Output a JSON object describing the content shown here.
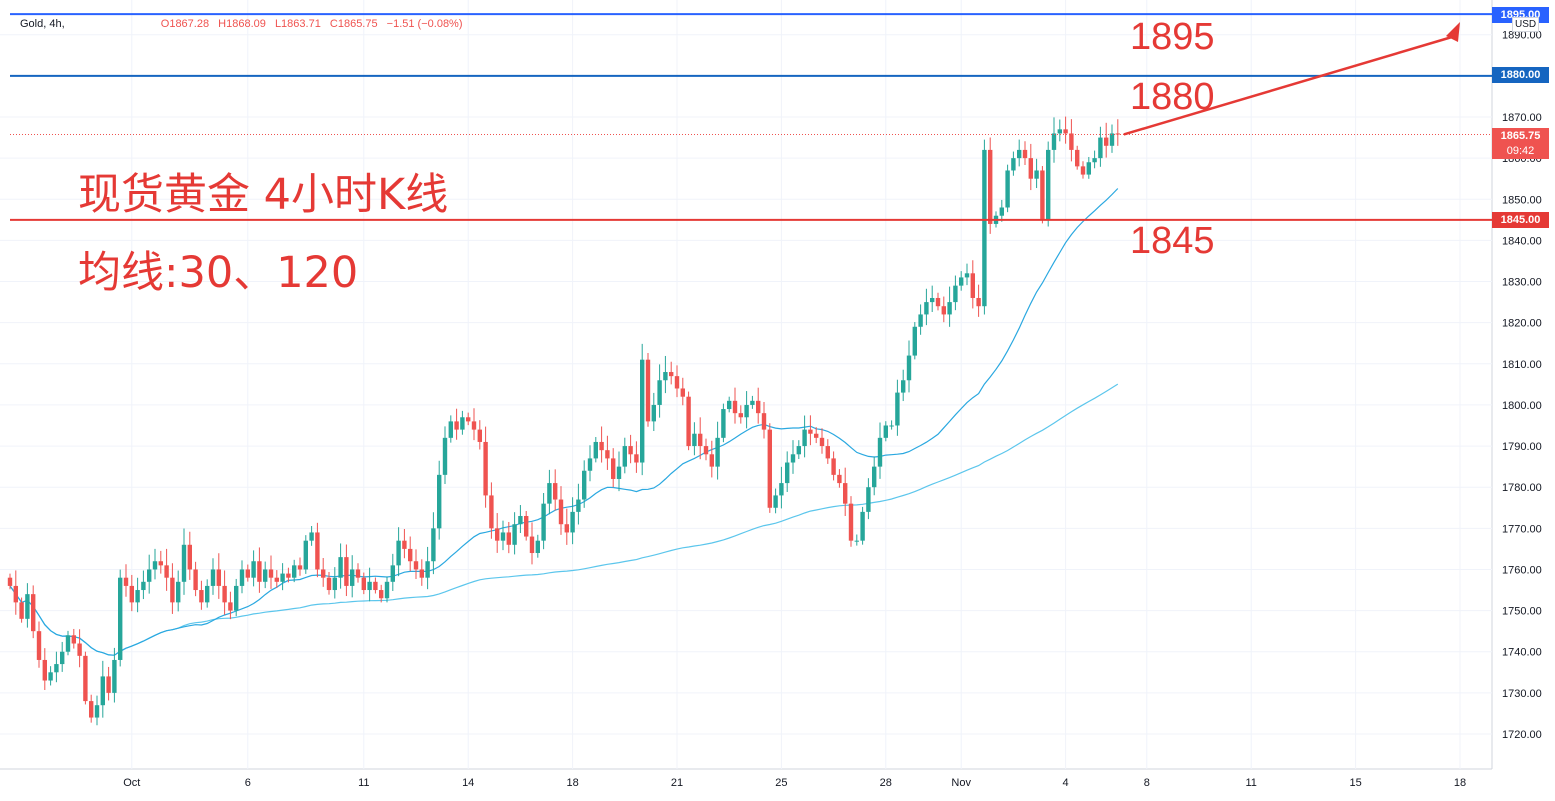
{
  "header": {
    "symbol": "Gold, 4h,",
    "open": "O1867.28",
    "high": "H1868.09",
    "low": "L1863.71",
    "close": "C1865.75",
    "change": "−1.51 (−0.08%)"
  },
  "annotations": {
    "title": "现货黄金 4小时K线",
    "ma_note": "均线:30、120",
    "level_1895": "1895",
    "level_1880": "1880",
    "level_1845": "1845"
  },
  "price_tags": {
    "tag_1895": "1895.00",
    "tag_1880": "1880.00",
    "current": "1865.75",
    "countdown": "09:42",
    "tag_1845": "1845.00",
    "currency": "USD"
  },
  "colors": {
    "up": "#26a69a",
    "down": "#ef5350",
    "ma30": "#2aa8e0",
    "ma120": "#5cc6ec",
    "line_1895": "#2962ff",
    "line_1880": "#1565c0",
    "line_1845": "#e53935",
    "annotation": "#e53935"
  },
  "chart_data": {
    "type": "candlestick",
    "symbol": "Gold",
    "timeframe": "4h",
    "y_range": [
      1716,
      1898
    ],
    "y_ticks": [
      1720,
      1730,
      1740,
      1750,
      1760,
      1770,
      1780,
      1790,
      1800,
      1810,
      1820,
      1830,
      1840,
      1850,
      1860,
      1870,
      1890
    ],
    "x_ticks": [
      {
        "label": "Oct",
        "index": 21
      },
      {
        "label": "6",
        "index": 41
      },
      {
        "label": "11",
        "index": 61
      },
      {
        "label": "14",
        "index": 79
      },
      {
        "label": "18",
        "index": 97
      },
      {
        "label": "21",
        "index": 115
      },
      {
        "label": "25",
        "index": 133
      },
      {
        "label": "28",
        "index": 151
      },
      {
        "label": "Nov",
        "index": 164
      },
      {
        "label": "4",
        "index": 182
      },
      {
        "label": "8",
        "index": 196
      },
      {
        "label": "11",
        "index": 214
      },
      {
        "label": "15",
        "index": 232
      },
      {
        "label": "18",
        "index": 250
      }
    ],
    "horizontal_levels": [
      {
        "value": 1895,
        "label": "1895"
      },
      {
        "value": 1880,
        "label": "1880"
      },
      {
        "value": 1845,
        "label": "1845"
      }
    ],
    "last_price": 1865.75,
    "closes": [
      1756,
      1752,
      1748,
      1754,
      1745,
      1738,
      1733,
      1735,
      1737,
      1740,
      1744,
      1742,
      1739,
      1728,
      1724,
      1727,
      1734,
      1730,
      1738,
      1758,
      1756,
      1752,
      1755,
      1757,
      1760,
      1762,
      1761,
      1758,
      1752,
      1757,
      1766,
      1760,
      1755,
      1752,
      1756,
      1760,
      1756,
      1752,
      1750,
      1756,
      1760,
      1758,
      1762,
      1757,
      1760,
      1758,
      1757,
      1759,
      1758,
      1761,
      1760,
      1767,
      1769,
      1760,
      1758,
      1755,
      1758,
      1763,
      1756,
      1760,
      1758,
      1755,
      1757,
      1755,
      1753,
      1757,
      1761,
      1767,
      1765,
      1762,
      1760,
      1758,
      1762,
      1770,
      1783,
      1792,
      1796,
      1794,
      1797,
      1796,
      1794,
      1791,
      1778,
      1770,
      1767,
      1769,
      1766,
      1771,
      1773,
      1768,
      1764,
      1767,
      1776,
      1781,
      1777,
      1771,
      1769,
      1774,
      1777,
      1784,
      1787,
      1791,
      1789,
      1787,
      1782,
      1785,
      1790,
      1788,
      1786,
      1811,
      1796,
      1800,
      1806,
      1808,
      1807,
      1804,
      1802,
      1790,
      1793,
      1790,
      1788,
      1785,
      1792,
      1799,
      1801,
      1798,
      1797,
      1800,
      1801,
      1798,
      1794,
      1775,
      1778,
      1781,
      1786,
      1788,
      1790,
      1794,
      1793,
      1792,
      1790,
      1787,
      1783,
      1781,
      1776,
      1767,
      1767,
      1774,
      1780,
      1785,
      1792,
      1795,
      1795,
      1803,
      1806,
      1812,
      1819,
      1822,
      1825,
      1826,
      1824,
      1822,
      1825,
      1829,
      1831,
      1832,
      1826,
      1824,
      1862,
      1844,
      1846,
      1848,
      1857,
      1860,
      1862,
      1860,
      1855,
      1857,
      1845,
      1862,
      1866,
      1867,
      1866,
      1862,
      1858,
      1856,
      1859,
      1860,
      1865,
      1863,
      1866,
      1865.75
    ],
    "series": [
      {
        "name": "MA30",
        "period": 30
      },
      {
        "name": "MA120",
        "period": 120
      }
    ]
  }
}
